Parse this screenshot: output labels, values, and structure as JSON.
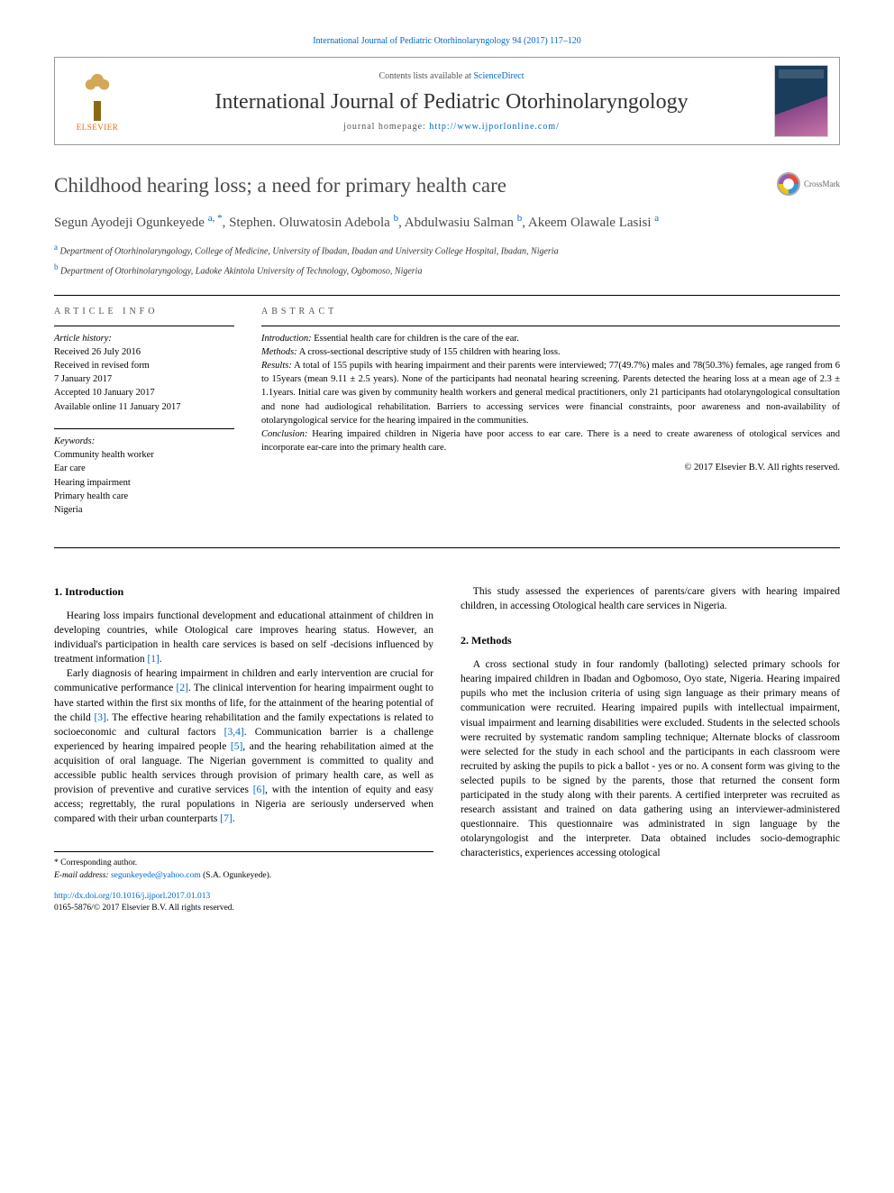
{
  "citation": "International Journal of Pediatric Otorhinolaryngology 94 (2017) 117–120",
  "header": {
    "contents_prefix": "Contents lists available at ",
    "contents_link": "ScienceDirect",
    "journal": "International Journal of Pediatric Otorhinolaryngology",
    "homepage_prefix": "journal homepage: ",
    "homepage_url": "http://www.ijporlonline.com/",
    "publisher_logo_text": "ELSEVIER"
  },
  "article": {
    "title": "Childhood hearing loss; a need for primary health care",
    "crossmark_label": "CrossMark",
    "authors_html": "Segun Ayodeji Ogunkeyede |a, *|, Stephen. Oluwatosin Adebola |b|, Abdulwasiu Salman |b|, Akeem Olawale Lasisi |a|",
    "affiliations": [
      {
        "mark": "a",
        "text": "Department of Otorhinolaryngology, College of Medicine, University of Ibadan, Ibadan and University College Hospital, Ibadan, Nigeria"
      },
      {
        "mark": "b",
        "text": "Department of Otorhinolaryngology, Ladoke Akintola University of Technology, Ogbomoso, Nigeria"
      }
    ]
  },
  "info": {
    "label": "ARTICLE INFO",
    "history_hdr": "Article history:",
    "history": [
      "Received 26 July 2016",
      "Received in revised form",
      "7 January 2017",
      "Accepted 10 January 2017",
      "Available online 11 January 2017"
    ],
    "keywords_hdr": "Keywords:",
    "keywords": [
      "Community health worker",
      "Ear care",
      "Hearing impairment",
      "Primary health care",
      "Nigeria"
    ]
  },
  "abstract": {
    "label": "ABSTRACT",
    "sections": [
      {
        "lead": "Introduction:",
        "text": " Essential health care for children is the care of the ear."
      },
      {
        "lead": "Methods:",
        "text": " A cross-sectional descriptive study of 155 children with hearing loss."
      },
      {
        "lead": "Results:",
        "text": " A total of 155 pupils with hearing impairment and their parents were interviewed; 77(49.7%) males and 78(50.3%) females, age ranged from 6 to 15years (mean 9.11 ± 2.5 years). None of the participants had neonatal hearing screening. Parents detected the hearing loss at a mean age of 2.3 ± 1.1years. Initial care was given by community health workers and general medical practitioners, only 21 participants had otolaryngological consultation and none had audiological rehabilitation. Barriers to accessing services were financial constraints, poor awareness and non-availability of otolaryngological service for the hearing impaired in the communities."
      },
      {
        "lead": "Conclusion:",
        "text": " Hearing impaired children in Nigeria have poor access to ear care. There is a need to create awareness of otological services and incorporate ear-care into the primary health care."
      }
    ],
    "copyright": "© 2017 Elsevier B.V. All rights reserved."
  },
  "body": {
    "left": {
      "heading": "1. Introduction",
      "p1": "Hearing loss impairs functional development and educational attainment of children in developing countries, while Otological care improves hearing status. However, an individual's participation in health care services is based on self -decisions influenced by treatment information ",
      "r1": "[1]",
      "p1b": ".",
      "p2a": "Early diagnosis of hearing impairment in children and early intervention are crucial for communicative performance ",
      "r2": "[2]",
      "p2b": ". The clinical intervention for hearing impairment ought to have started within the first six months of life, for the attainment of the hearing potential of the child ",
      "r3": "[3]",
      "p2c": ". The effective hearing rehabilitation and the family expectations is related to socioeconomic and cultural factors ",
      "r34": "[3,4]",
      "p2d": ". Communication barrier is a challenge experienced by hearing impaired people ",
      "r5": "[5]",
      "p2e": ", and the hearing rehabilitation aimed at the acquisition of oral language. The Nigerian government is committed to quality and accessible public health services through provision of primary health care, as well as provision of preventive and curative services ",
      "r6": "[6]",
      "p2f": ", with the intention of equity and easy access; regrettably, the rural populations in Nigeria are seriously underserved when compared with their urban counterparts ",
      "r7": "[7]",
      "p2g": "."
    },
    "right": {
      "p0": "This study assessed the experiences of parents/care givers with hearing impaired children, in accessing Otological health care services in Nigeria.",
      "heading": "2. Methods",
      "p1": "A cross sectional study in four randomly (balloting) selected primary schools for hearing impaired children in Ibadan and Ogbomoso, Oyo state, Nigeria. Hearing impaired pupils who met the inclusion criteria of using sign language as their primary means of communication were recruited. Hearing impaired pupils with intellectual impairment, visual impairment and learning disabilities were excluded. Students in the selected schools were recruited by systematic random sampling technique; Alternate blocks of classroom were selected for the study in each school and the participants in each classroom were recruited by asking the pupils to pick a ballot - yes or no. A consent form was giving to the selected pupils to be signed by the parents, those that returned the consent form participated in the study along with their parents. A certified interpreter was recruited as research assistant and trained on data gathering using an interviewer-administered questionnaire. This questionnaire was administrated in sign language by the otolaryngologist and the interpreter. Data obtained includes socio-demographic characteristics, experiences accessing otological"
    }
  },
  "footer": {
    "corr_label": "* Corresponding author.",
    "email_label": "E-mail address: ",
    "email": "segunkeyede@yahoo.com",
    "email_suffix": " (S.A. Ogunkeyede).",
    "doi": "http://dx.doi.org/10.1016/j.ijporl.2017.01.013",
    "issn_line": "0165-5876/© 2017 Elsevier B.V. All rights reserved."
  },
  "colors": {
    "link": "#0066cc",
    "text": "#000000",
    "title_gray": "#4a4a4a",
    "elsevier_orange": "#ec6608"
  }
}
